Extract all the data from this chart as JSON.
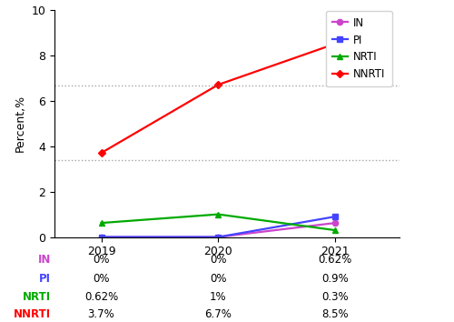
{
  "years": [
    2019,
    2020,
    2021
  ],
  "series_order": [
    "IN",
    "PI",
    "NRTI",
    "NNRTI"
  ],
  "series": {
    "IN": {
      "values": [
        0.0,
        0.0,
        0.62
      ],
      "color": "#cc44cc",
      "marker": "o",
      "linestyle": "-"
    },
    "PI": {
      "values": [
        0.0,
        0.0,
        0.9
      ],
      "color": "#4444ff",
      "marker": "s",
      "linestyle": "-"
    },
    "NRTI": {
      "values": [
        0.62,
        1.0,
        0.3
      ],
      "color": "#00aa00",
      "marker": "^",
      "linestyle": "-"
    },
    "NNRTI": {
      "values": [
        3.7,
        6.7,
        8.5
      ],
      "color": "#ff0000",
      "marker": "D",
      "linestyle": "-"
    }
  },
  "ylabel": "Percent,%",
  "ylim": [
    0,
    10
  ],
  "yticks": [
    0,
    2,
    4,
    6,
    8,
    10
  ],
  "xlim": [
    2018.6,
    2021.55
  ],
  "hlines": [
    3.4,
    6.65
  ],
  "table_labels": [
    "IN",
    "PI",
    "NRTI",
    "NNRTI"
  ],
  "table_data": [
    [
      "0%",
      "0%",
      "0.62%"
    ],
    [
      "0%",
      "0%",
      "0.9%"
    ],
    [
      "0.62%",
      "1%",
      "0.3%"
    ],
    [
      "3.7%",
      "6.7%",
      "8.5%"
    ]
  ],
  "label_colors": {
    "IN": "#cc44cc",
    "PI": "#4444ff",
    "NRTI": "#00aa00",
    "NNRTI": "#ff0000"
  },
  "background_color": "#ffffff",
  "figsize": [
    5.0,
    3.54
  ],
  "dpi": 100
}
